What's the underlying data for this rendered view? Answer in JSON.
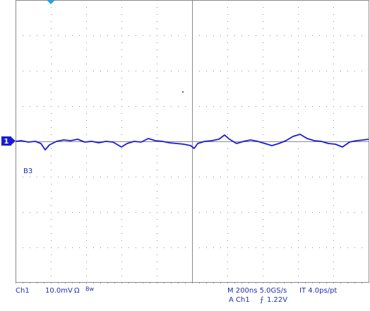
{
  "chart_data": {
    "type": "line",
    "x": [
      0,
      32,
      72,
      112,
      144,
      168,
      192,
      232,
      272,
      312,
      352,
      392,
      432,
      472,
      512,
      552,
      600,
      632,
      672,
      712,
      752,
      792,
      832,
      872,
      912,
      952,
      992,
      1012,
      1032,
      1072,
      1112,
      1152,
      1184,
      1212,
      1252,
      1292,
      1332,
      1372,
      1412,
      1452,
      1492,
      1532,
      1572,
      1612,
      1652,
      1692,
      1732,
      1772,
      1812,
      1852,
      1892,
      1932,
      1972,
      2000
    ],
    "series": [
      {
        "name": "Ch1",
        "color": "#1a1ad8",
        "values": [
          0,
          0.2,
          -0.2,
          0,
          -0.6,
          -2.4,
          -1.0,
          0,
          0.4,
          0.2,
          0.6,
          -0.2,
          0,
          -0.4,
          0,
          -0.2,
          -1.6,
          -0.6,
          0,
          -0.2,
          0.8,
          0.2,
          0,
          -0.4,
          -0.6,
          -0.8,
          -1.2,
          -2.0,
          -0.6,
          0,
          0.2,
          0.6,
          1.8,
          0.6,
          -0.6,
          0,
          0.4,
          0,
          -0.6,
          -1.2,
          -0.6,
          0.2,
          1.4,
          2.0,
          0.8,
          0.2,
          0,
          -0.6,
          -0.8,
          -1.6,
          -0.2,
          0.2,
          0.4,
          0.6
        ]
      }
    ],
    "xlim": [
      0,
      2000
    ],
    "xticks": [
      0,
      200,
      400,
      600,
      800,
      1000,
      1200,
      1400,
      1600,
      1800,
      2000
    ],
    "ylim": [
      -40,
      40
    ],
    "yticks": [
      -40,
      -30,
      -20,
      -10,
      0,
      10,
      20,
      30,
      40
    ],
    "grid": true,
    "channel_marker": "1",
    "ref_label": "B3",
    "status": {
      "channel": "Ch1",
      "scale": "10.0mV",
      "coupling": "Ω",
      "bandwidth": "Bw",
      "timebase": "M 200ns 5.0GS/s",
      "interp": "IT 4.0ps/pt",
      "trigger_source": "A Ch1",
      "trigger_slope": "⨍",
      "trigger_level": "1.22V"
    }
  }
}
